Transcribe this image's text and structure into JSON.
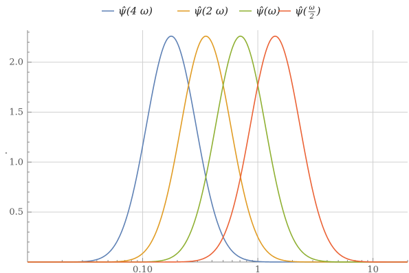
{
  "chart_data": {
    "type": "line",
    "xscale": "log",
    "xlim": [
      0.01,
      20
    ],
    "ylim": [
      0,
      2.32
    ],
    "grid": true,
    "legend_position": "top",
    "xlabel": "",
    "ylabel": "\"",
    "x_ticks": [
      {
        "value": 0.1,
        "label": "0.10"
      },
      {
        "value": 1,
        "label": "1"
      },
      {
        "value": 10,
        "label": "10"
      }
    ],
    "y_ticks": [
      {
        "value": 0.5,
        "label": "0.5"
      },
      {
        "value": 1.0,
        "label": "1.0"
      },
      {
        "value": 1.5,
        "label": "1.5"
      },
      {
        "value": 2.0,
        "label": "2.0"
      }
    ],
    "series": [
      {
        "name": "ψ̂(4 ω)",
        "color": "#5e81b5",
        "peak_x": 0.177,
        "peak_y": 2.26
      },
      {
        "name": "ψ̂(2 ω)",
        "color": "#e19c24",
        "peak_x": 0.354,
        "peak_y": 2.26
      },
      {
        "name": "ψ̂(ω)",
        "color": "#8fb032",
        "peak_x": 0.707,
        "peak_y": 2.26
      },
      {
        "name": "ψ̂(ω/2)",
        "color": "#eb6235",
        "peak_x": 1.414,
        "peak_y": 2.26
      }
    ]
  }
}
